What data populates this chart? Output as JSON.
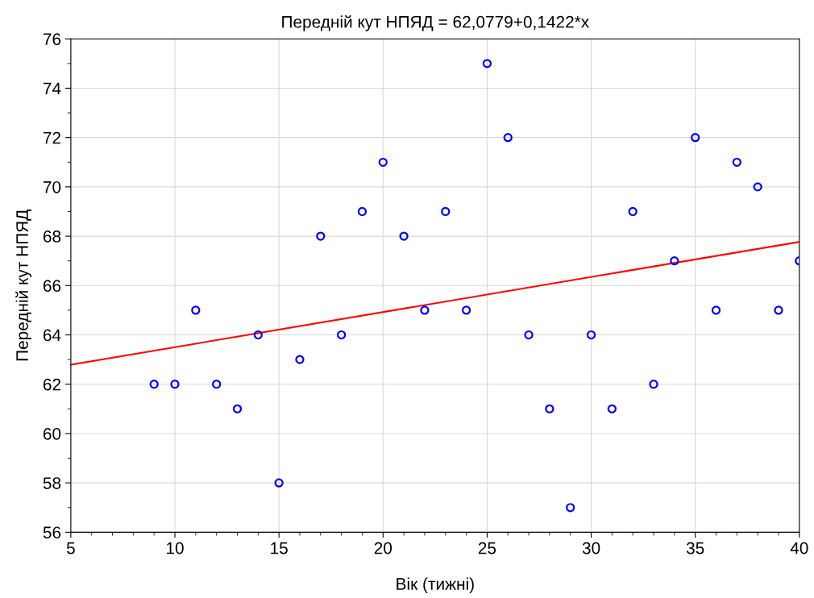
{
  "chart_data": {
    "type": "scatter",
    "title": "Передній кут НПЯД = 62,0779+0,1422*x",
    "xlabel": "Вік (тижні)",
    "ylabel": "Передній кут НПЯД",
    "xlim": [
      5,
      40
    ],
    "xticks": [
      5,
      10,
      15,
      20,
      25,
      30,
      35,
      40
    ],
    "ylim": [
      56,
      76
    ],
    "yticks": [
      56,
      58,
      60,
      62,
      64,
      66,
      68,
      70,
      72,
      74,
      76
    ],
    "grid": true,
    "series": [
      {
        "marker": "circle",
        "color": "#0000ff",
        "x": [
          9,
          10,
          11,
          12,
          13,
          14,
          15,
          16,
          17,
          18,
          19,
          20,
          21,
          22,
          23,
          24,
          25,
          26,
          27,
          28,
          29,
          30,
          31,
          32,
          33,
          34,
          35,
          36,
          37,
          38,
          39,
          40
        ],
        "values": [
          62,
          62,
          65,
          62,
          61,
          64,
          58,
          63,
          68,
          64,
          69,
          71,
          68,
          65,
          69,
          65,
          75,
          72,
          64,
          61,
          57,
          64,
          61,
          69,
          62,
          67,
          72,
          65,
          71,
          70,
          65,
          67
        ]
      },
      {
        "type": "line",
        "color": "#ff0000",
        "x": [
          5,
          40
        ],
        "values": [
          62.79,
          67.77
        ]
      }
    ]
  }
}
